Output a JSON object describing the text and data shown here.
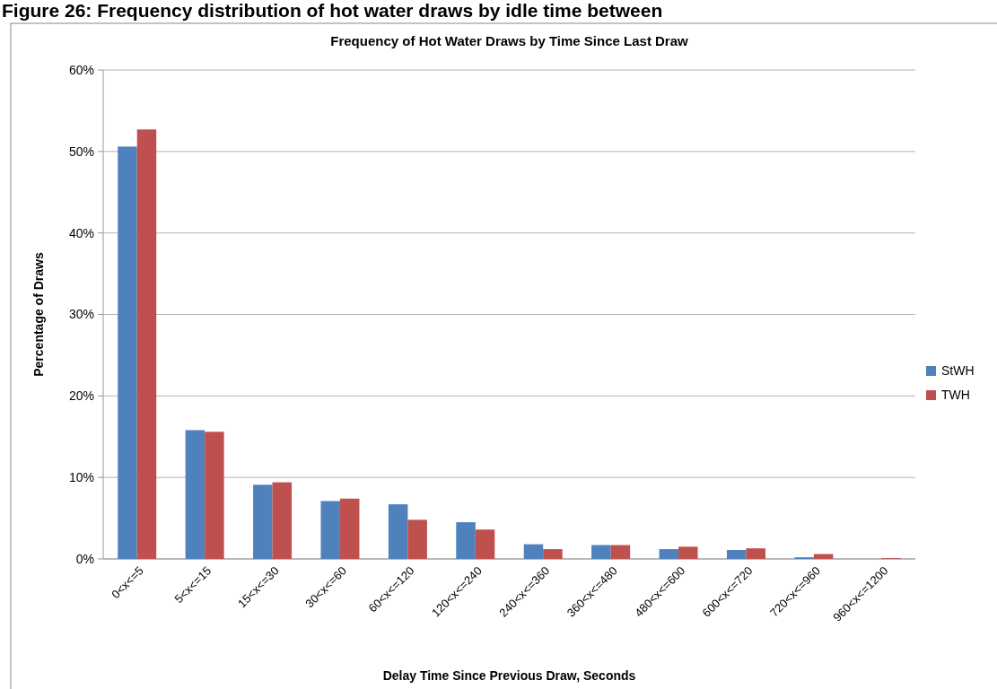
{
  "chart_data": {
    "type": "bar",
    "title": "Frequency of Hot Water Draws by Time Since Last Draw",
    "subtitle": "Figure 26: Frequency distribution of hot water draws by idle time between",
    "xlabel": "Delay Time Since Previous Draw, Seconds",
    "ylabel": "Percentage of Draws",
    "categories": [
      "0<x<=5",
      "5<x<=15",
      "15<x<=30",
      "30<x<=60",
      "60<x<=120",
      "120<x<=240",
      "240<x<=360",
      "360<x<=480",
      "480<x<=600",
      "600<x<=720",
      "720<x<=960",
      "960<x<=1200"
    ],
    "series": [
      {
        "name": "StWH",
        "color": "#4f81bd",
        "values": [
          50.6,
          15.8,
          9.1,
          7.1,
          6.7,
          4.5,
          1.8,
          1.7,
          1.2,
          1.1,
          0.2,
          0
        ]
      },
      {
        "name": "TWH",
        "color": "#c0504d",
        "values": [
          52.7,
          15.6,
          9.4,
          7.4,
          4.8,
          3.6,
          1.2,
          1.7,
          1.5,
          1.3,
          0.6,
          0.1
        ]
      }
    ],
    "ylim": [
      0,
      60
    ],
    "yticks": [
      {
        "value": 0,
        "label": "0%"
      },
      {
        "value": 10,
        "label": "10%"
      },
      {
        "value": 20,
        "label": "20%"
      },
      {
        "value": 30,
        "label": "30%"
      },
      {
        "value": 40,
        "label": "40%"
      },
      {
        "value": 50,
        "label": "50%"
      },
      {
        "value": 60,
        "label": "60%"
      }
    ],
    "grid": "y",
    "legend": "right"
  }
}
